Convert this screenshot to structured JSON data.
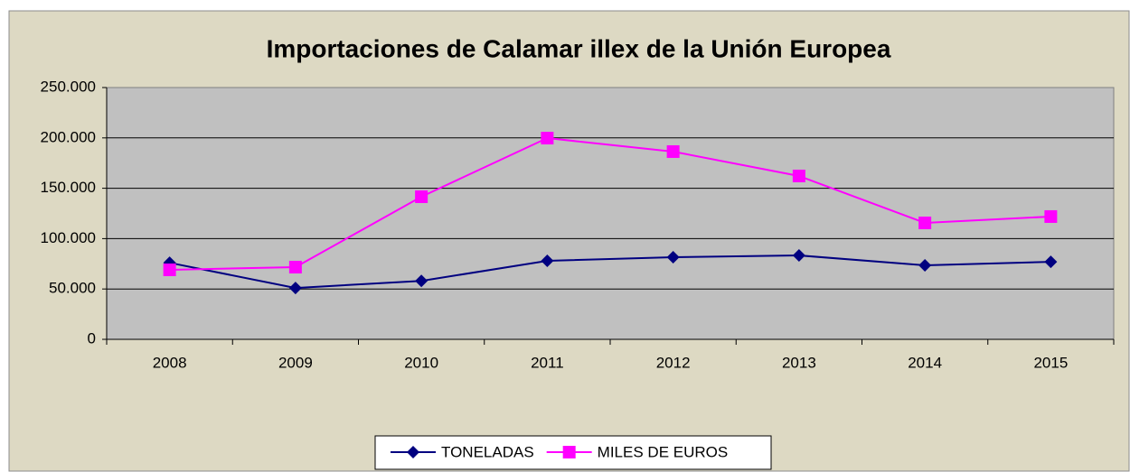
{
  "chart_data": {
    "type": "line",
    "title": "Importaciones de Calamar illex de la Unión Europea",
    "categories": [
      "2008",
      "2009",
      "2010",
      "2011",
      "2012",
      "2013",
      "2014",
      "2015"
    ],
    "series": [
      {
        "name": "TONELADAS",
        "color": "#000080",
        "marker": "diamond",
        "values": [
          76000,
          51000,
          58000,
          78000,
          81500,
          83300,
          73500,
          77000
        ]
      },
      {
        "name": "MILES DE EUROS",
        "color": "#ff00ff",
        "marker": "square",
        "values": [
          69000,
          71700,
          141600,
          199800,
          186400,
          162200,
          115600,
          121900
        ]
      }
    ],
    "ylim": [
      0,
      250000
    ],
    "yticks": [
      0,
      {
        "value": 50000,
        "label": "50.000"
      },
      {
        "value": 100000,
        "label": "100.000"
      },
      {
        "value": 150000,
        "label": "150.000"
      },
      {
        "value": 200000,
        "label": "200.000"
      },
      {
        "value": 250000,
        "label": "250.000"
      }
    ],
    "grid": true,
    "legend": "bottom"
  }
}
